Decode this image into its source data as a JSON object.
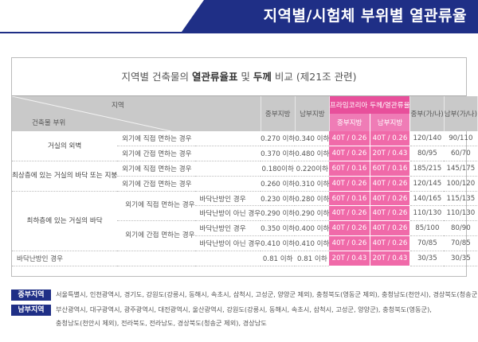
{
  "header": {
    "title": "지역별/시험체 부위별 열관류율"
  },
  "card": {
    "title_pre": "지역별 건축물의 ",
    "title_b1": "열관류율표",
    "title_mid": " 및 ",
    "title_b2": "두께",
    "title_post": " 비교 (제21조 관련)"
  },
  "columns": {
    "region": "지역",
    "part": "건축물 부위",
    "central": "중부지방",
    "southern": "남부지방",
    "prime": "프라임코리아 두께/열관류율",
    "prime_central": "중부지방",
    "prime_southern": "남부지방",
    "thick_central": "중부(가/나)",
    "thick_southern": "남부(가/나)"
  },
  "rows": [
    {
      "cat": "거실의 외벽",
      "sub": "",
      "cond": "외기에 직접 면하는 경우",
      "c": "0.270 이하",
      "s": "0.340 이하",
      "pc": "40T / 0.26",
      "ps": "40T / 0.26",
      "tc": "120/140",
      "ts": "90/110"
    },
    {
      "cat": "",
      "sub": "",
      "cond": "외기에 간접 면하는 경우",
      "c": "0.370 이하",
      "s": "0.480 이하",
      "pc": "40T / 0.26",
      "ps": "20T / 0.43",
      "tc": "80/95",
      "ts": "60/70"
    },
    {
      "cat": "최상층에 있는 거실의 바닥 또는 지붕",
      "sub": "",
      "cond": "외기에 직접 면하는 경우",
      "c": "0.180이하",
      "s": "0.220이하",
      "pc": "60T / 0.16",
      "ps": "60T / 0.16",
      "tc": "185/215",
      "ts": "145/175"
    },
    {
      "cat": "",
      "sub": "",
      "cond": "외기에 간접 면하는 경우",
      "c": "0.260 이하",
      "s": "0.310 이하",
      "pc": "40T / 0.26",
      "ps": "40T / 0.26",
      "tc": "120/145",
      "ts": "100/120"
    },
    {
      "cat": "최하층에 있는 거실의 바닥",
      "sub": "외기에 직접 면하는 경우",
      "cond": "바닥난방인 경우",
      "c": "0.230 이하",
      "s": "0.280 이하",
      "pc": "60T / 0.16",
      "ps": "40T / 0.26",
      "tc": "140/165",
      "ts": "115/135"
    },
    {
      "cat": "",
      "sub": "",
      "cond": "바닥난방이 아닌 경우",
      "c": "0.290 이하",
      "s": "0.290 이하",
      "pc": "40T / 0.26",
      "ps": "40T / 0.26",
      "tc": "110/130",
      "ts": "110/130"
    },
    {
      "cat": "",
      "sub": "외기에 간접 면하는 경우",
      "cond": "바닥난방인 경우",
      "c": "0.350 이하",
      "s": "0.400 이하",
      "pc": "40T / 0.26",
      "ps": "40T / 0.26",
      "tc": "85/100",
      "ts": "80/90"
    },
    {
      "cat": "",
      "sub": "",
      "cond": "바닥난방이 아닌 경우",
      "c": "0.410 이하",
      "s": "0.410 이하",
      "pc": "40T / 0.26",
      "ps": "40T / 0.26",
      "tc": "70/85",
      "ts": "70/85"
    },
    {
      "cat": "바닥난방인 경우",
      "sub": "",
      "cond": "",
      "c": "0.81 이하",
      "s": "0.81 이하",
      "pc": "20T / 0.43",
      "ps": "20T / 0.43",
      "tc": "30/35",
      "ts": "30/35"
    }
  ],
  "legend": {
    "central_tag": "중부지역",
    "central_text": "서울특별시, 인천광역시, 경기도, 강원도(강릉시, 동해시, 속초시, 삼척시, 고성군, 양양군 제외), 충청북도(영동군 제외), 충청남도(천안시), 경상북도(청송군)",
    "southern_tag": "남부지역",
    "southern_text1": "부산광역시, 대구광역시, 광주광역시, 대전광역시, 울산광역시, 강원도(강릉시, 동해시, 속초시, 삼척시, 고성군, 양양군), 충청북도(영동군),",
    "southern_text2": "충청남도(천안시 제외), 전라북도, 전라남도, 경상북도(청송군 제외), 경상남도"
  },
  "colors": {
    "navy": "#1f2f86",
    "pink": "#e84f9b",
    "pink_cell": "#f06aa9",
    "header_gray": "#c9c9c9"
  }
}
